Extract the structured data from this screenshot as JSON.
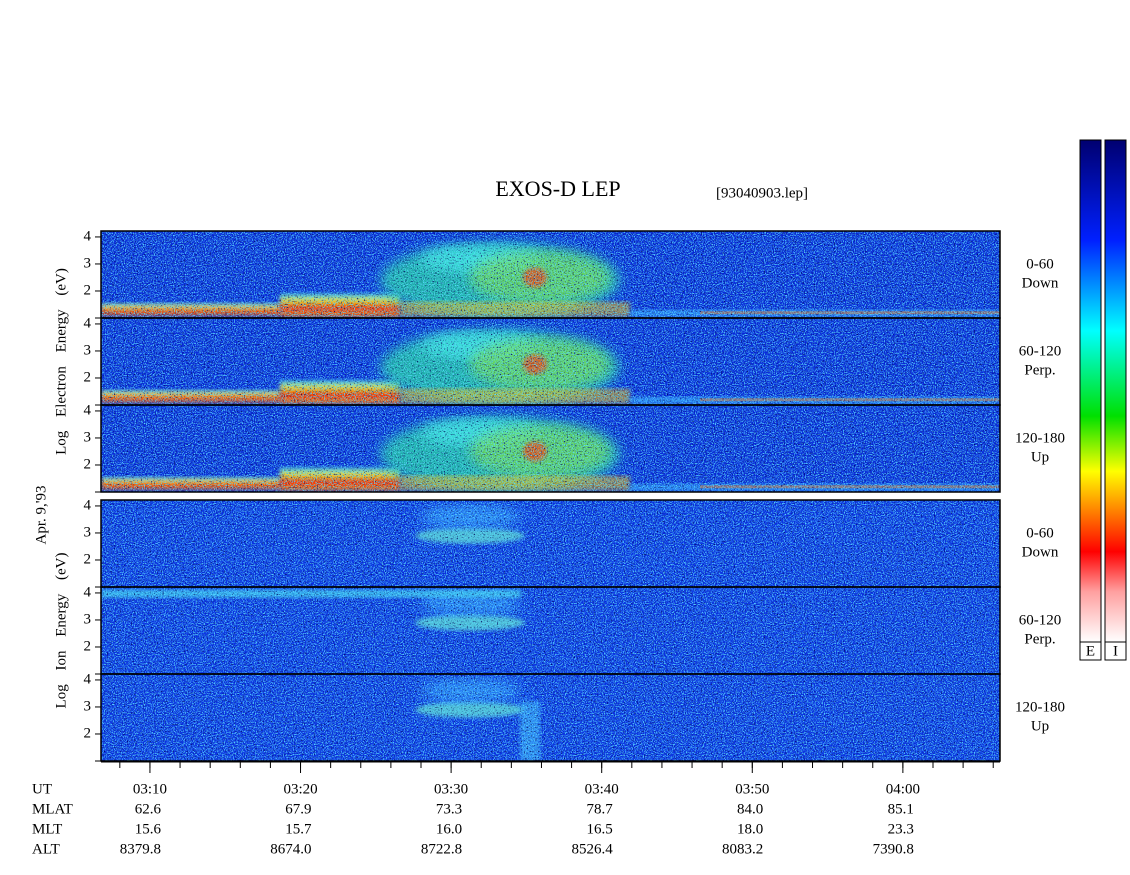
{
  "chart_data": {
    "type": "spectrogram",
    "title": "EXOS-D LEP",
    "file_label": "[93040903.lep]",
    "date_label": "Apr. 9,'93",
    "xlim": [
      6.75,
      66.45
    ],
    "xticks": [
      {
        "value": 10,
        "label": "03:10"
      },
      {
        "value": 20,
        "label": "03:20"
      },
      {
        "value": 30,
        "label": "03:30"
      },
      {
        "value": 40,
        "label": "03:40"
      },
      {
        "value": 50,
        "label": "03:50"
      },
      {
        "value": 60,
        "label": "04:00"
      }
    ],
    "ylim": [
      1,
      4.22
    ],
    "yticks": [
      2,
      3,
      4
    ],
    "groups": [
      {
        "axis_label": "Log Electron Energy (eV)",
        "colorbar_label": "E",
        "panels": [
          {
            "label": [
              "0-60",
              "Down"
            ]
          },
          {
            "label": [
              "60-120",
              "Perp."
            ]
          },
          {
            "label": [
              "120-180",
              "Up"
            ]
          }
        ]
      },
      {
        "axis_label": "Log Ion Energy (eV)",
        "colorbar_label": "I",
        "panels": [
          {
            "label": [
              "0-60",
              "Down"
            ]
          },
          {
            "label": [
              "60-120",
              "Perp."
            ]
          },
          {
            "label": [
              "120-180",
              "Up"
            ]
          }
        ]
      }
    ],
    "ephemeris": {
      "ut_label": "UT",
      "rows": [
        {
          "name": "MLAT",
          "values": [
            "62.6",
            "67.9",
            "73.3",
            "78.7",
            "84.0",
            "85.1"
          ]
        },
        {
          "name": "MLT",
          "values": [
            "15.6",
            "15.7",
            "16.0",
            "16.5",
            "18.0",
            "23.3"
          ]
        },
        {
          "name": "ALT",
          "values": [
            "8379.8",
            "8674.0",
            "8722.8",
            "8526.4",
            "8083.2",
            "7390.8"
          ]
        }
      ]
    }
  }
}
